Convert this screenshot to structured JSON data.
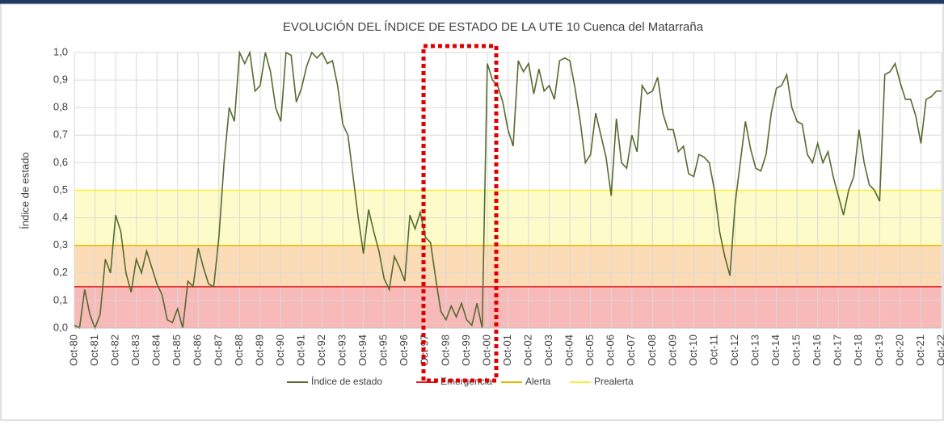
{
  "chart_data": {
    "type": "line",
    "title": "EVOLUCIÓN DEL ÍNDICE DE ESTADO DE LA UTE 10 Cuenca del Matarraña",
    "y_label": "Índice de estado",
    "categories": [
      "Oct-80",
      null,
      null,
      null,
      "Oct-81",
      null,
      null,
      null,
      "Oct-82",
      null,
      null,
      null,
      "Oct-83",
      null,
      null,
      null,
      "Oct-84",
      null,
      null,
      null,
      "Oct-85",
      null,
      null,
      null,
      "Oct-86",
      null,
      null,
      null,
      "Oct-87",
      null,
      null,
      null,
      "Oct-88",
      null,
      null,
      null,
      "Oct-89",
      null,
      null,
      null,
      "Oct-90",
      null,
      null,
      null,
      "Oct-91",
      null,
      null,
      null,
      "Oct-92",
      null,
      null,
      null,
      "Oct-93",
      null,
      null,
      null,
      "Oct-94",
      null,
      null,
      null,
      "Oct-95",
      null,
      null,
      null,
      "Oct-96",
      null,
      null,
      null,
      "Oct-97",
      null,
      null,
      null,
      "Oct-98",
      null,
      null,
      null,
      "Oct-99",
      null,
      null,
      null,
      "Oct-00",
      null,
      null,
      null,
      "Oct-01",
      null,
      null,
      null,
      "Oct-02",
      null,
      null,
      null,
      "Oct-03",
      null,
      null,
      null,
      "Oct-04",
      null,
      null,
      null,
      "Oct-05",
      null,
      null,
      null,
      "Oct-06",
      null,
      null,
      null,
      "Oct-07",
      null,
      null,
      null,
      "Oct-08",
      null,
      null,
      null,
      "Oct-09",
      null,
      null,
      null,
      "Oct-10",
      null,
      null,
      null,
      "Oct-11",
      null,
      null,
      null,
      "Oct-12",
      null,
      null,
      null,
      "Oct-13",
      null,
      null,
      null,
      "Oct-14",
      null,
      null,
      null,
      "Oct-15",
      null,
      null,
      null,
      "Oct-16",
      null,
      null,
      null,
      "Oct-17",
      null,
      null,
      null,
      "Oct-18",
      null,
      null,
      null,
      "Oct-19",
      null,
      null,
      null,
      "Oct-20",
      null,
      null,
      null,
      "Oct-21",
      null,
      null,
      null,
      "Oct-22"
    ],
    "series": [
      {
        "name": "Índice de estado",
        "color": "#556b2f",
        "values": [
          0.01,
          0.0,
          0.14,
          0.05,
          0.0,
          0.05,
          0.25,
          0.2,
          0.41,
          0.35,
          0.2,
          0.13,
          0.25,
          0.2,
          0.28,
          0.22,
          0.16,
          0.12,
          0.03,
          0.02,
          0.07,
          0.0,
          0.17,
          0.15,
          0.29,
          0.22,
          0.16,
          0.15,
          0.33,
          0.6,
          0.8,
          0.75,
          1.0,
          0.96,
          1.0,
          0.86,
          0.88,
          1.0,
          0.93,
          0.8,
          0.75,
          1.0,
          0.99,
          0.82,
          0.87,
          0.95,
          1.0,
          0.98,
          1.0,
          0.96,
          0.97,
          0.88,
          0.74,
          0.7,
          0.55,
          0.4,
          0.27,
          0.43,
          0.35,
          0.28,
          0.18,
          0.14,
          0.26,
          0.22,
          0.17,
          0.41,
          0.36,
          0.42,
          0.33,
          0.31,
          0.18,
          0.06,
          0.03,
          0.08,
          0.04,
          0.09,
          0.03,
          0.01,
          0.09,
          0.0,
          0.96,
          0.9,
          0.88,
          0.82,
          0.72,
          0.66,
          0.97,
          0.93,
          0.96,
          0.85,
          0.94,
          0.86,
          0.88,
          0.83,
          0.97,
          0.98,
          0.97,
          0.87,
          0.75,
          0.6,
          0.63,
          0.78,
          0.7,
          0.62,
          0.48,
          0.76,
          0.6,
          0.58,
          0.7,
          0.64,
          0.88,
          0.85,
          0.86,
          0.91,
          0.78,
          0.72,
          0.72,
          0.64,
          0.66,
          0.56,
          0.55,
          0.63,
          0.62,
          0.6,
          0.5,
          0.35,
          0.26,
          0.19,
          0.45,
          0.6,
          0.75,
          0.65,
          0.58,
          0.57,
          0.63,
          0.78,
          0.87,
          0.88,
          0.92,
          0.8,
          0.75,
          0.74,
          0.63,
          0.6,
          0.67,
          0.6,
          0.64,
          0.55,
          0.48,
          0.41,
          0.5,
          0.55,
          0.72,
          0.6,
          0.52,
          0.5,
          0.46,
          0.92,
          0.93,
          0.96,
          0.89,
          0.83,
          0.83,
          0.77,
          0.67,
          0.83,
          0.84,
          0.86,
          0.86
        ]
      }
    ],
    "thresholds": [
      {
        "name": "Emergencia",
        "value": 0.15,
        "color": "#e41a1a",
        "band_color": "#f8b9b9"
      },
      {
        "name": "Alerta",
        "value": 0.3,
        "color": "#f0b400",
        "band_color": "#fcdcb6"
      },
      {
        "name": "Prealerta",
        "value": 0.5,
        "color": "#f5f03a",
        "band_color": "#fdfbc9"
      }
    ],
    "ylim": [
      0,
      1
    ],
    "yticks": [
      {
        "value": 0,
        "label": "0,0"
      },
      {
        "value": 0.1,
        "label": "0,1"
      },
      {
        "value": 0.2,
        "label": "0,2"
      },
      {
        "value": 0.3,
        "label": "0,3"
      },
      {
        "value": 0.4,
        "label": "0,4"
      },
      {
        "value": 0.5,
        "label": "0,5"
      },
      {
        "value": 0.6,
        "label": "0,6"
      },
      {
        "value": 0.7,
        "label": "0,7"
      },
      {
        "value": 0.8,
        "label": "0,8"
      },
      {
        "value": 0.9,
        "label": "0,9"
      },
      {
        "value": 1,
        "label": "1,0"
      }
    ],
    "grid": true
  }
}
